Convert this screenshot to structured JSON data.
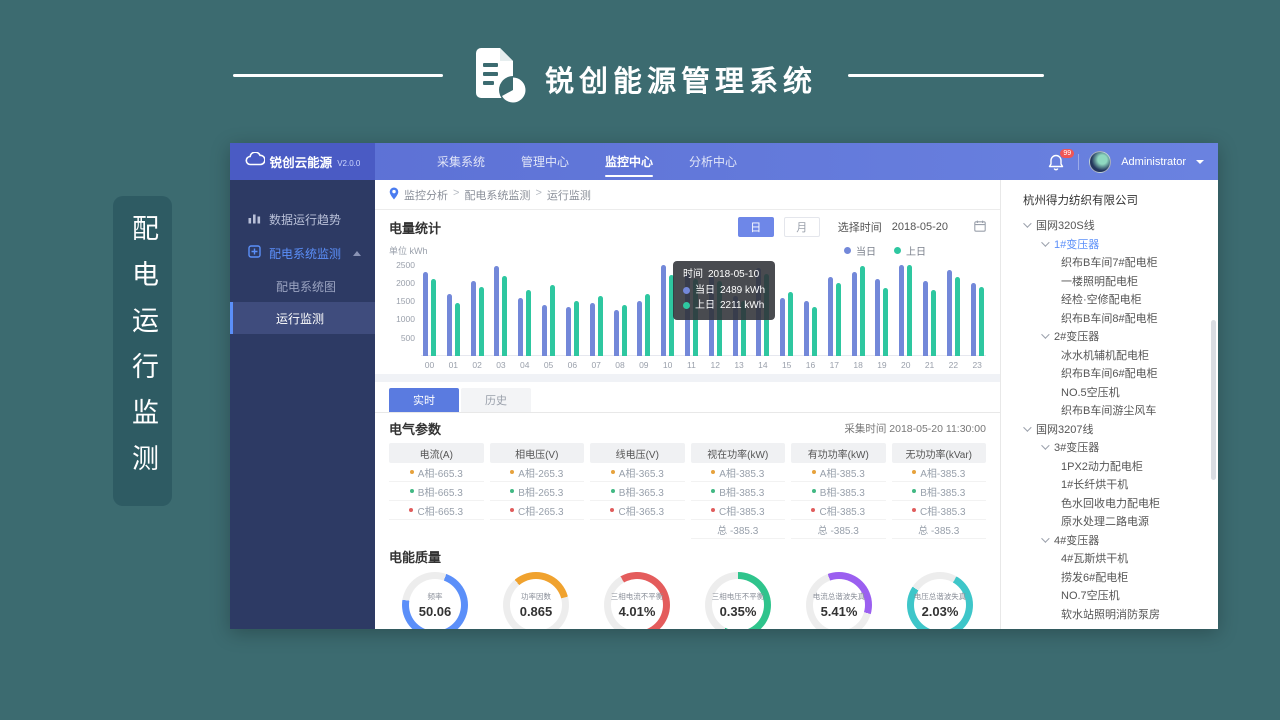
{
  "page": {
    "header_title": "锐创能源管理系统",
    "side_tag": "配电运行监测"
  },
  "app": {
    "brand": "锐创云能源",
    "version": "V2.0.0",
    "nav": [
      {
        "label": "采集系统",
        "active": false
      },
      {
        "label": "管理中心",
        "active": false
      },
      {
        "label": "监控中心",
        "active": true
      },
      {
        "label": "分析中心",
        "active": false
      }
    ],
    "notification_badge": "99",
    "user_name": "Administrator",
    "sidebar": {
      "item1": "数据运行趋势",
      "item2": "配电系统监测",
      "sub1": "配电系统图",
      "sub2": "运行监测"
    },
    "breadcrumb": {
      "items": [
        "监控分析",
        "配电系统监测",
        "运行监测"
      ],
      "separator": ">"
    }
  },
  "energy": {
    "title": "电量统计",
    "toggle": [
      {
        "label": "日",
        "active": true
      },
      {
        "label": "月",
        "active": false
      }
    ],
    "select_label": "选择时间",
    "date_value": "2018-05-20",
    "tooltip": {
      "time_label": "时间",
      "time_value": "2018-05-10",
      "rows": [
        {
          "label": "当日",
          "value": "2489 kWh",
          "color": "#7388d9"
        },
        {
          "label": "上日",
          "value": "2211 kWh",
          "color": "#2ec7a0"
        }
      ]
    }
  },
  "tabs": [
    {
      "label": "实时",
      "active": true
    },
    {
      "label": "历史",
      "active": false
    }
  ],
  "params": {
    "title": "电气参数",
    "collect_label": "采集时间",
    "collect_value": "2018-05-20 11:30:00",
    "columns": [
      {
        "header": "电流(A)",
        "rows": [
          {
            "dot": "#e6a23c",
            "text": "A相-665.3"
          },
          {
            "dot": "#41b883",
            "text": "B相-665.3"
          },
          {
            "dot": "#e05c5c",
            "text": "C相-665.3"
          }
        ]
      },
      {
        "header": "相电压(V)",
        "rows": [
          {
            "dot": "#e6a23c",
            "text": "A相-265.3"
          },
          {
            "dot": "#41b883",
            "text": "B相-265.3"
          },
          {
            "dot": "#e05c5c",
            "text": "C相-265.3"
          }
        ]
      },
      {
        "header": "线电压(V)",
        "rows": [
          {
            "dot": "#e6a23c",
            "text": "A相-365.3"
          },
          {
            "dot": "#41b883",
            "text": "B相-365.3"
          },
          {
            "dot": "#e05c5c",
            "text": "C相-365.3"
          }
        ]
      },
      {
        "header": "视在功率(kW)",
        "rows": [
          {
            "dot": "#e6a23c",
            "text": "A相-385.3"
          },
          {
            "dot": "#41b883",
            "text": "B相-385.3"
          },
          {
            "dot": "#e05c5c",
            "text": "C相-385.3"
          },
          {
            "dot": null,
            "text": "总 -385.3"
          }
        ]
      },
      {
        "header": "有功功率(kW)",
        "rows": [
          {
            "dot": "#e6a23c",
            "text": "A相-385.3"
          },
          {
            "dot": "#41b883",
            "text": "B相-385.3"
          },
          {
            "dot": "#e05c5c",
            "text": "C相-385.3"
          },
          {
            "dot": null,
            "text": "总 -385.3"
          }
        ]
      },
      {
        "header": "无功功率(kVar)",
        "rows": [
          {
            "dot": "#e6a23c",
            "text": "A相-385.3"
          },
          {
            "dot": "#41b883",
            "text": "B相-385.3"
          },
          {
            "dot": "#e05c5c",
            "text": "C相-385.3"
          },
          {
            "dot": null,
            "text": "总 -385.3"
          }
        ]
      }
    ]
  },
  "quality_title": "电能质量",
  "tree": {
    "root": "杭州得力纺织有限公司",
    "items": [
      {
        "label": "国网320S线",
        "level": 1,
        "arrow": true
      },
      {
        "label": "1#变压器",
        "level": 2,
        "arrow": true,
        "selected": true
      },
      {
        "label": "织布B车间7#配电柜",
        "level": 3
      },
      {
        "label": "一楼照明配电柜",
        "level": 3
      },
      {
        "label": "经检·空修配电柜",
        "level": 3
      },
      {
        "label": "织布B车间8#配电柜",
        "level": 3
      },
      {
        "label": "2#变压器",
        "level": 2,
        "arrow": true
      },
      {
        "label": "冰水机辅机配电柜",
        "level": 3
      },
      {
        "label": "织布B车间6#配电柜",
        "level": 3
      },
      {
        "label": "NO.5空压机",
        "level": 3
      },
      {
        "label": "织布B车间游尘风车",
        "level": 3
      },
      {
        "label": "国网3207线",
        "level": 1,
        "arrow": true
      },
      {
        "label": "3#变压器",
        "level": 2,
        "arrow": true
      },
      {
        "label": "1PX2动力配电柜",
        "level": 3
      },
      {
        "label": "1#长纤烘干机",
        "level": 3
      },
      {
        "label": "色水回收电力配电柜",
        "level": 3
      },
      {
        "label": "原水处理二路电源",
        "level": 3
      },
      {
        "label": "4#变压器",
        "level": 2,
        "arrow": true
      },
      {
        "label": "4#瓦斯烘干机",
        "level": 3
      },
      {
        "label": "捞发6#配电柜",
        "level": 3
      },
      {
        "label": "NO.7空压机",
        "level": 3
      },
      {
        "label": "软水站照明消防泵房",
        "level": 3
      }
    ]
  },
  "chart_data": [
    {
      "type": "bar",
      "title": "电量统计",
      "unit_label": "单位 kWh",
      "categories": [
        "00",
        "01",
        "02",
        "03",
        "04",
        "05",
        "06",
        "07",
        "08",
        "09",
        "10",
        "11",
        "12",
        "13",
        "14",
        "15",
        "16",
        "17",
        "18",
        "19",
        "20",
        "21",
        "22",
        "23"
      ],
      "series": [
        {
          "name": "当日",
          "color": "#7388d9",
          "values": [
            2300,
            1700,
            2050,
            2450,
            1600,
            1400,
            1350,
            1450,
            1250,
            1500,
            2489,
            2250,
            2200,
            1650,
            2400,
            1600,
            1500,
            2150,
            2300,
            2100,
            2500,
            2050,
            2350,
            2000
          ]
        },
        {
          "name": "上日",
          "color": "#2ec7a0",
          "values": [
            2100,
            1450,
            1900,
            2200,
            1800,
            1950,
            1500,
            1650,
            1400,
            1700,
            2211,
            2100,
            2050,
            1500,
            2250,
            1750,
            1350,
            2000,
            2450,
            1850,
            2480,
            1800,
            2150,
            1900
          ]
        }
      ],
      "ylim": [
        0,
        2500
      ],
      "yticks": [
        500,
        1000,
        1500,
        2000,
        2500
      ],
      "legend_position": "top-right",
      "grid": false
    },
    {
      "type": "pie",
      "subtype": "gauge-ring",
      "gauges": [
        {
          "label": "频率",
          "value": "50.06",
          "color": "#5b8ff9",
          "pct": 72,
          "start": 20
        },
        {
          "label": "功率因数",
          "value": "0.865",
          "color": "#f0a22e",
          "pct": 32,
          "start": -40
        },
        {
          "label": "三相电流不平衡",
          "value": "4.01%",
          "color": "#e45c5c",
          "pct": 62,
          "start": -30
        },
        {
          "label": "三相电压不平衡",
          "value": "0.35%",
          "color": "#2fc48c",
          "pct": 58,
          "start": 0
        },
        {
          "label": "电流总谐波失真",
          "value": "5.41%",
          "color": "#9b5ff0",
          "pct": 35,
          "start": -20
        },
        {
          "label": "电压总谐波失真",
          "value": "2.03%",
          "color": "#3ec6c9",
          "pct": 76,
          "start": 30
        }
      ]
    }
  ]
}
